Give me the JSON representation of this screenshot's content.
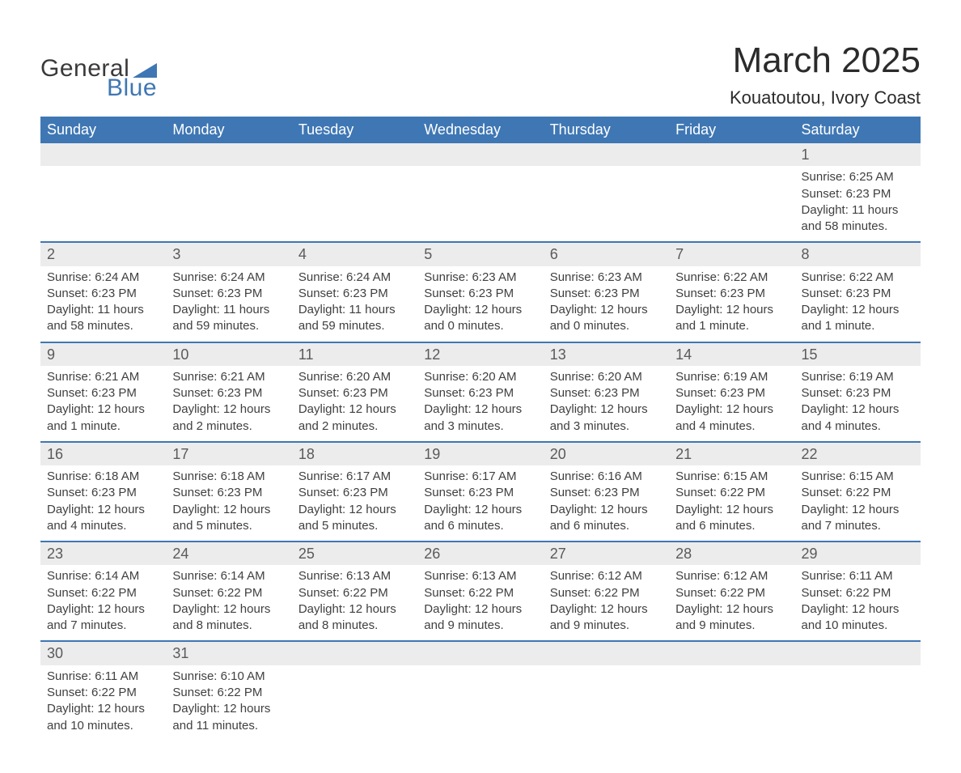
{
  "logo": {
    "text_top": "General",
    "text_bottom": "Blue",
    "triangle_color": "#3f77b4",
    "text_color_top": "#3a3a3a"
  },
  "title": "March 2025",
  "location": "Kouatoutou, Ivory Coast",
  "colors": {
    "header_bg": "#3f77b4",
    "header_text": "#ffffff",
    "row_divider": "#3f77b4",
    "daynum_bg": "#ececec",
    "body_text": "#404040"
  },
  "day_headers": [
    "Sunday",
    "Monday",
    "Tuesday",
    "Wednesday",
    "Thursday",
    "Friday",
    "Saturday"
  ],
  "labels": {
    "sunrise": "Sunrise: ",
    "sunset": "Sunset: ",
    "daylight": "Daylight: "
  },
  "weeks": [
    [
      null,
      null,
      null,
      null,
      null,
      null,
      {
        "n": "1",
        "sunrise": "6:25 AM",
        "sunset": "6:23 PM",
        "daylight": "11 hours and 58 minutes."
      }
    ],
    [
      {
        "n": "2",
        "sunrise": "6:24 AM",
        "sunset": "6:23 PM",
        "daylight": "11 hours and 58 minutes."
      },
      {
        "n": "3",
        "sunrise": "6:24 AM",
        "sunset": "6:23 PM",
        "daylight": "11 hours and 59 minutes."
      },
      {
        "n": "4",
        "sunrise": "6:24 AM",
        "sunset": "6:23 PM",
        "daylight": "11 hours and 59 minutes."
      },
      {
        "n": "5",
        "sunrise": "6:23 AM",
        "sunset": "6:23 PM",
        "daylight": "12 hours and 0 minutes."
      },
      {
        "n": "6",
        "sunrise": "6:23 AM",
        "sunset": "6:23 PM",
        "daylight": "12 hours and 0 minutes."
      },
      {
        "n": "7",
        "sunrise": "6:22 AM",
        "sunset": "6:23 PM",
        "daylight": "12 hours and 1 minute."
      },
      {
        "n": "8",
        "sunrise": "6:22 AM",
        "sunset": "6:23 PM",
        "daylight": "12 hours and 1 minute."
      }
    ],
    [
      {
        "n": "9",
        "sunrise": "6:21 AM",
        "sunset": "6:23 PM",
        "daylight": "12 hours and 1 minute."
      },
      {
        "n": "10",
        "sunrise": "6:21 AM",
        "sunset": "6:23 PM",
        "daylight": "12 hours and 2 minutes."
      },
      {
        "n": "11",
        "sunrise": "6:20 AM",
        "sunset": "6:23 PM",
        "daylight": "12 hours and 2 minutes."
      },
      {
        "n": "12",
        "sunrise": "6:20 AM",
        "sunset": "6:23 PM",
        "daylight": "12 hours and 3 minutes."
      },
      {
        "n": "13",
        "sunrise": "6:20 AM",
        "sunset": "6:23 PM",
        "daylight": "12 hours and 3 minutes."
      },
      {
        "n": "14",
        "sunrise": "6:19 AM",
        "sunset": "6:23 PM",
        "daylight": "12 hours and 4 minutes."
      },
      {
        "n": "15",
        "sunrise": "6:19 AM",
        "sunset": "6:23 PM",
        "daylight": "12 hours and 4 minutes."
      }
    ],
    [
      {
        "n": "16",
        "sunrise": "6:18 AM",
        "sunset": "6:23 PM",
        "daylight": "12 hours and 4 minutes."
      },
      {
        "n": "17",
        "sunrise": "6:18 AM",
        "sunset": "6:23 PM",
        "daylight": "12 hours and 5 minutes."
      },
      {
        "n": "18",
        "sunrise": "6:17 AM",
        "sunset": "6:23 PM",
        "daylight": "12 hours and 5 minutes."
      },
      {
        "n": "19",
        "sunrise": "6:17 AM",
        "sunset": "6:23 PM",
        "daylight": "12 hours and 6 minutes."
      },
      {
        "n": "20",
        "sunrise": "6:16 AM",
        "sunset": "6:23 PM",
        "daylight": "12 hours and 6 minutes."
      },
      {
        "n": "21",
        "sunrise": "6:15 AM",
        "sunset": "6:22 PM",
        "daylight": "12 hours and 6 minutes."
      },
      {
        "n": "22",
        "sunrise": "6:15 AM",
        "sunset": "6:22 PM",
        "daylight": "12 hours and 7 minutes."
      }
    ],
    [
      {
        "n": "23",
        "sunrise": "6:14 AM",
        "sunset": "6:22 PM",
        "daylight": "12 hours and 7 minutes."
      },
      {
        "n": "24",
        "sunrise": "6:14 AM",
        "sunset": "6:22 PM",
        "daylight": "12 hours and 8 minutes."
      },
      {
        "n": "25",
        "sunrise": "6:13 AM",
        "sunset": "6:22 PM",
        "daylight": "12 hours and 8 minutes."
      },
      {
        "n": "26",
        "sunrise": "6:13 AM",
        "sunset": "6:22 PM",
        "daylight": "12 hours and 9 minutes."
      },
      {
        "n": "27",
        "sunrise": "6:12 AM",
        "sunset": "6:22 PM",
        "daylight": "12 hours and 9 minutes."
      },
      {
        "n": "28",
        "sunrise": "6:12 AM",
        "sunset": "6:22 PM",
        "daylight": "12 hours and 9 minutes."
      },
      {
        "n": "29",
        "sunrise": "6:11 AM",
        "sunset": "6:22 PM",
        "daylight": "12 hours and 10 minutes."
      }
    ],
    [
      {
        "n": "30",
        "sunrise": "6:11 AM",
        "sunset": "6:22 PM",
        "daylight": "12 hours and 10 minutes."
      },
      {
        "n": "31",
        "sunrise": "6:10 AM",
        "sunset": "6:22 PM",
        "daylight": "12 hours and 11 minutes."
      },
      null,
      null,
      null,
      null,
      null
    ]
  ]
}
